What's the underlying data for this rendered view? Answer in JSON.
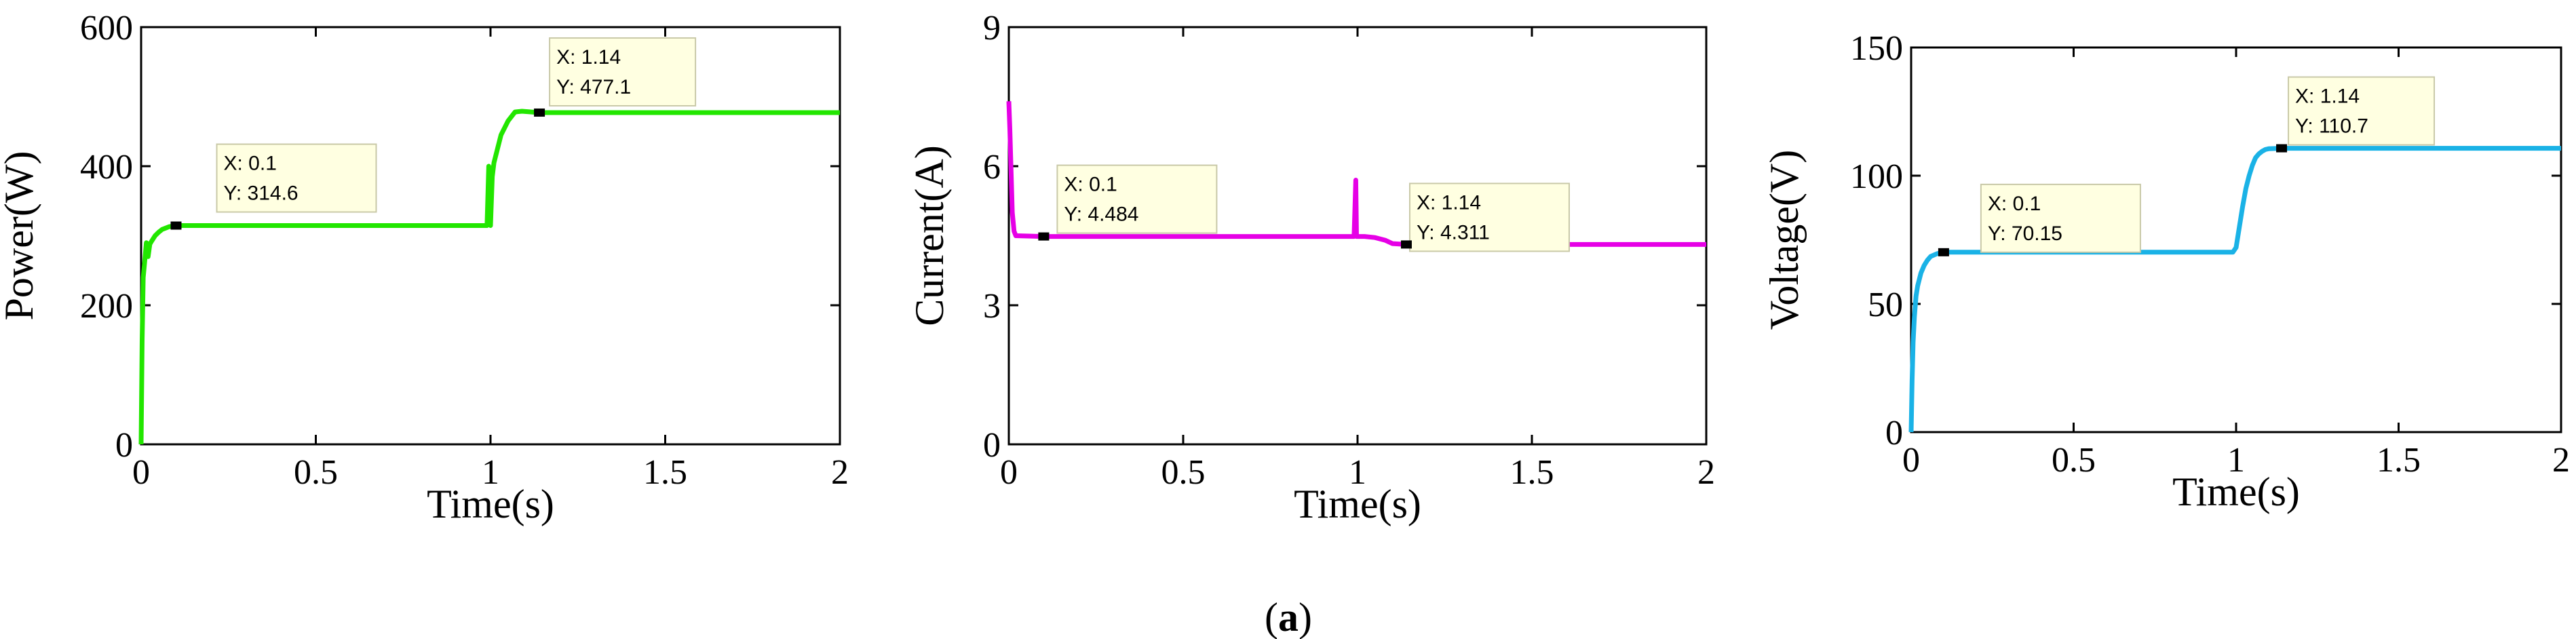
{
  "caption": {
    "open": "(",
    "letter": "a",
    "close": ")"
  },
  "chart_data": [
    {
      "type": "line",
      "xlabel": "Time(s)",
      "ylabel": "Power(W)",
      "xlim": [
        0,
        2
      ],
      "ylim": [
        0,
        600
      ],
      "xticks": [
        0,
        0.5,
        1,
        1.5,
        2
      ],
      "xtick_labels": [
        "0",
        "0.5",
        "1",
        "1.5",
        "2"
      ],
      "yticks": [
        0,
        200,
        400,
        600
      ],
      "ytick_labels": [
        "0",
        "200",
        "400",
        "600"
      ],
      "color": "#22e600",
      "series": [
        {
          "x": [
            0,
            0.003,
            0.006,
            0.01,
            0.015,
            0.02,
            0.025,
            0.03,
            0.04,
            0.05,
            0.06,
            0.07,
            0.08,
            0.1,
            0.3,
            0.6,
            0.99,
            0.995,
            1.0,
            1.005,
            1.01,
            1.02,
            1.03,
            1.05,
            1.07,
            1.09,
            1.14,
            1.5,
            2.0
          ],
          "y": [
            0,
            150,
            240,
            262,
            290,
            270,
            288,
            292,
            300,
            305,
            309,
            311,
            313,
            314.6,
            314.6,
            314.6,
            314.6,
            400,
            314.6,
            385,
            405,
            425,
            445,
            465,
            478,
            479,
            477.1,
            477.1,
            477.1
          ]
        }
      ],
      "datatips": [
        {
          "x_label": "X: 0.1",
          "y_label": "Y: 314.6",
          "x": 0.1,
          "y": 314.6
        },
        {
          "x_label": "X: 1.14",
          "y_label": "Y: 477.1",
          "x": 1.14,
          "y": 477.1
        }
      ]
    },
    {
      "type": "line",
      "xlabel": "Time(s)",
      "ylabel": "Current(A)",
      "xlim": [
        0,
        2
      ],
      "ylim": [
        0,
        9
      ],
      "xticks": [
        0,
        0.5,
        1,
        1.5,
        2
      ],
      "xtick_labels": [
        "0",
        "0.5",
        "1",
        "1.5",
        "2"
      ],
      "yticks": [
        0,
        3,
        6,
        9
      ],
      "ytick_labels": [
        "0",
        "3",
        "6",
        "9"
      ],
      "color": "#e600e6",
      "series": [
        {
          "x": [
            0,
            0.003,
            0.006,
            0.01,
            0.015,
            0.02,
            0.1,
            0.5,
            0.99,
            0.995,
            0.997,
            1.0,
            1.02,
            1.05,
            1.08,
            1.1,
            1.14,
            1.5,
            2.0
          ],
          "y": [
            7.4,
            6.8,
            6.0,
            5.0,
            4.6,
            4.5,
            4.484,
            4.484,
            4.484,
            5.7,
            4.484,
            4.484,
            4.484,
            4.46,
            4.4,
            4.33,
            4.311,
            4.311,
            4.311
          ]
        }
      ],
      "datatips": [
        {
          "x_label": "X: 0.1",
          "y_label": "Y: 4.484",
          "x": 0.1,
          "y": 4.484
        },
        {
          "x_label": "X: 1.14",
          "y_label": "Y: 4.311",
          "x": 1.14,
          "y": 4.311
        }
      ]
    },
    {
      "type": "line",
      "xlabel": "Time(s)",
      "ylabel": "Voltage(V)",
      "xlim": [
        0,
        2
      ],
      "ylim": [
        0,
        150
      ],
      "xticks": [
        0,
        0.5,
        1,
        1.5,
        2
      ],
      "xtick_labels": [
        "0",
        "0.5",
        "1",
        "1.5",
        "2"
      ],
      "yticks": [
        0,
        50,
        100,
        150
      ],
      "ytick_labels": [
        "0",
        "50",
        "100",
        "150"
      ],
      "color": "#1ab2e6",
      "series": [
        {
          "x": [
            0,
            0.003,
            0.006,
            0.01,
            0.015,
            0.02,
            0.03,
            0.04,
            0.05,
            0.06,
            0.08,
            0.1,
            0.5,
            0.99,
            1.0,
            1.01,
            1.02,
            1.03,
            1.04,
            1.05,
            1.06,
            1.07,
            1.08,
            1.09,
            1.1,
            1.14,
            1.5,
            2.0
          ],
          "y": [
            0,
            20,
            35,
            45,
            53,
            57,
            62,
            65,
            67,
            68.5,
            69.6,
            70.15,
            70.15,
            70.15,
            72,
            80,
            88,
            95,
            100,
            104,
            107,
            108.5,
            109.5,
            110.2,
            110.5,
            110.7,
            110.7,
            110.7
          ]
        }
      ],
      "datatips": [
        {
          "x_label": "X: 0.1",
          "y_label": "Y: 70.15",
          "x": 0.1,
          "y": 70.15
        },
        {
          "x_label": "X: 1.14",
          "y_label": "Y: 110.7",
          "x": 1.14,
          "y": 110.7
        }
      ]
    }
  ]
}
